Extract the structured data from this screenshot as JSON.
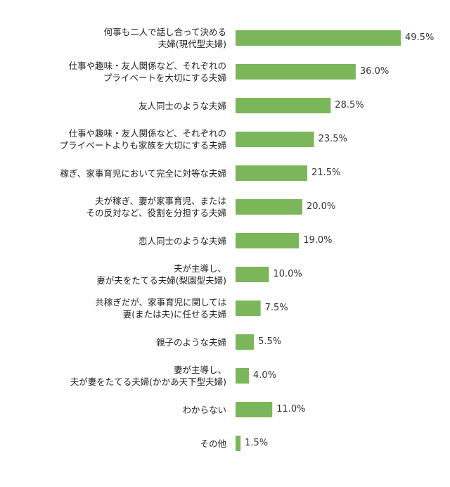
{
  "chart_data": {
    "type": "bar",
    "orientation": "horizontal",
    "categories": [
      "何事も二人で話し合って決める\n夫婦(現代型夫婦)",
      "仕事や趣味・友人関係など、それぞれの\nプライベートを大切にする夫婦",
      "友人同士のような夫婦",
      "仕事や趣味・友人関係など、それぞれの\nプライベートよりも家族を大切にする夫婦",
      "稼ぎ、家事育児において完全に対等な夫婦",
      "夫が稼ぎ、妻が家事育児、または\nその反対など、役割を分担する夫婦",
      "恋人同士のような夫婦",
      "夫が主導し、\n妻が夫をたてる夫婦(梨園型夫婦)",
      "共稼ぎだが、家事育児に関しては\n妻(または夫)に任せる夫婦",
      "親子のような夫婦",
      "妻が主導し、\n夫が妻をたてる夫婦(かかあ天下型夫婦)",
      "わからない",
      "その他"
    ],
    "values": [
      49.5,
      36.0,
      28.5,
      23.5,
      21.5,
      20.0,
      19.0,
      10.0,
      7.5,
      5.5,
      4.0,
      11.0,
      1.5
    ],
    "value_labels": [
      "49.5%",
      "36.0%",
      "28.5%",
      "23.5%",
      "21.5%",
      "20.0%",
      "19.0%",
      "10.0%",
      "7.5%",
      "5.5%",
      "4.0%",
      "11.0%",
      "1.5%"
    ],
    "xlim": [
      0,
      49.5
    ],
    "bar_color": "#7cb65a",
    "grid": false,
    "legend": "none"
  }
}
